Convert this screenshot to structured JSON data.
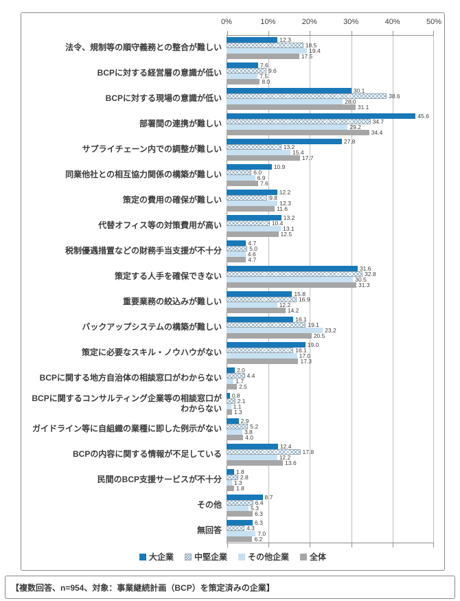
{
  "chart_data": {
    "type": "bar",
    "orientation": "horizontal",
    "title": "",
    "x_axis": {
      "position": "top",
      "min": 0,
      "max": 50,
      "tick_step": 10,
      "ticks": [
        "0%",
        "10%",
        "20%",
        "30%",
        "40%",
        "50%"
      ],
      "grid": true
    },
    "categories": [
      "法令、規制等の順守義務との整合が難しい",
      "BCPに対する経営層の意識が低い",
      "BCPに対する現場の意識が低い",
      "部署間の連携が難しい",
      "サプライチェーン内での調整が難しい",
      "同業他社との相互協力関係の構築が難しい",
      "策定の費用の確保が難しい",
      "代替オフィス等の対策費用が高い",
      "税制優遇措置などの財務手当支援が不十分",
      "策定する人手を確保できない",
      "重要業務の絞込みが難しい",
      "バックアップシステムの構築が難しい",
      "策定に必要なスキル・ノウハウがない",
      "BCPに関する地方自治体の相談窓口がわからない",
      "BCPに関するコンサルティング企業等の相談窓口が\nわからない",
      "ガイドライン等に自組織の業種に即した例示がない",
      "BCPの内容に関する情報が不足している",
      "民間のBCP支援サービスが不十分",
      "その他",
      "無回答"
    ],
    "series": [
      {
        "name": "大企業",
        "style": "solid",
        "color": "#1878b8",
        "values": [
          12.3,
          7.6,
          30.1,
          45.6,
          27.8,
          10.9,
          12.2,
          13.2,
          4.7,
          31.6,
          15.8,
          16.1,
          19.0,
          2.0,
          0.8,
          2.9,
          12.4,
          1.8,
          8.7,
          6.3
        ]
      },
      {
        "name": "中堅企業",
        "style": "hatched",
        "color": "#ffffff",
        "hatch_color": "#7da0b9",
        "border_color": "#93a4b0",
        "values": [
          18.5,
          9.6,
          38.6,
          34.7,
          13.2,
          6.0,
          9.8,
          10.4,
          5.0,
          32.8,
          16.9,
          19.1,
          16.1,
          4.4,
          2.1,
          5.2,
          17.8,
          2.8,
          6.4,
          4.3
        ]
      },
      {
        "name": "その他企業",
        "style": "solid",
        "color": "#c7e1f2",
        "values": [
          19.4,
          7.5,
          28.0,
          29.2,
          15.4,
          6.9,
          12.3,
          13.1,
          4.6,
          30.5,
          12.2,
          23.2,
          17.0,
          1.7,
          1.1,
          3.8,
          12.2,
          1.3,
          5.3,
          7.0
        ]
      },
      {
        "name": "全体",
        "style": "solid",
        "color": "#a6a6a6",
        "values": [
          17.5,
          8.0,
          31.1,
          34.4,
          17.7,
          7.6,
          11.6,
          12.5,
          4.7,
          31.3,
          14.2,
          20.5,
          17.3,
          2.5,
          1.3,
          4.0,
          13.6,
          1.8,
          6.3,
          6.2
        ]
      }
    ],
    "legend": {
      "position": "bottom"
    },
    "footer_note": "【複数回答、n=954、対象：事業継続計画（BCP）を策定済みの企業】",
    "colors": {
      "large_company": "#1878b8",
      "other_company": "#c7e1f2",
      "total": "#a6a6a6",
      "grid": "#bdbdbd",
      "frame": "#8f8f8f",
      "text": "#3d3d3d"
    }
  }
}
